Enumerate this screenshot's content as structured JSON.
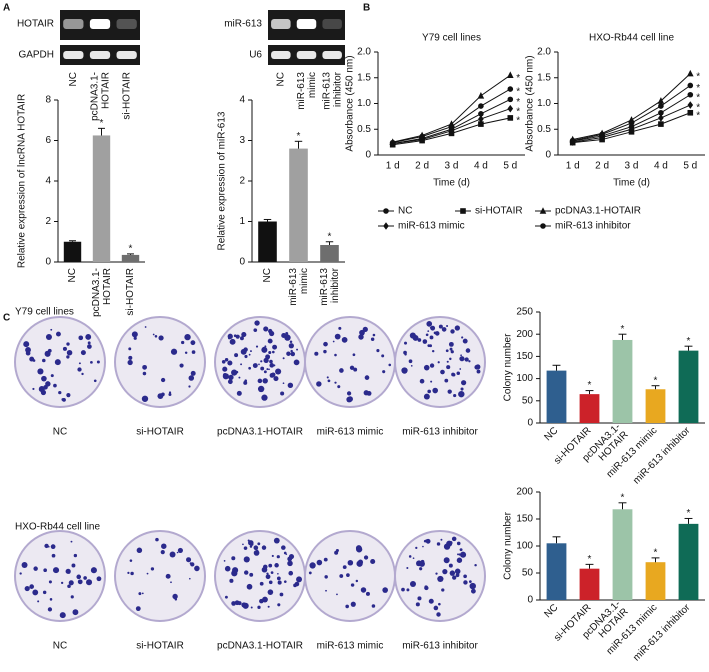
{
  "figure": {
    "panel_labels": [
      "A",
      "B",
      "C"
    ],
    "gels": [
      {
        "target": "HOTAIR",
        "control": "GAPDH",
        "lanes": [
          "NC",
          "pcDNA3.1-\nHOTAIR",
          "si-HOTAIR"
        ]
      },
      {
        "target": "miR-613",
        "control": "U6",
        "lanes": [
          "NC",
          "miR-613\nmimic",
          "miR-613\ninhibitor"
        ]
      }
    ],
    "colony_rows": [
      {
        "title": "Y79 cell lines",
        "labels": [
          "NC",
          "si-HOTAIR",
          "pcDNA3.1-HOTAIR",
          "miR-613 mimic",
          "miR-613 inhibitor"
        ]
      },
      {
        "title": "HXO-Rb44 cell line",
        "labels": [
          "NC",
          "si-HOTAIR",
          "pcDNA3.1-HOTAIR",
          "miR-613 mimic",
          "miR-613 inhibitor"
        ]
      }
    ]
  },
  "chart_data": [
    {
      "type": "bar",
      "ylabel": "Relative expression of lncRNA HOTAIR",
      "categories": [
        "NC",
        "pcDNA3.1-\nHOTAIR",
        "si-HOTAIR"
      ],
      "values": [
        1.0,
        6.25,
        0.35
      ],
      "errors": [
        0.05,
        0.35,
        0.05
      ],
      "annotations": [
        null,
        "*",
        "*"
      ],
      "colors": [
        "#111111",
        "#a0a0a0",
        "#6e6e6e"
      ],
      "ylim": [
        0,
        8
      ],
      "yticks": [
        0,
        2,
        4,
        6,
        8
      ]
    },
    {
      "type": "bar",
      "ylabel": "Relative expression of miR-613",
      "categories": [
        "NC",
        "miR-613\nmimic",
        "miR-613\ninhibitor"
      ],
      "values": [
        1.0,
        2.8,
        0.42
      ],
      "errors": [
        0.05,
        0.18,
        0.08
      ],
      "annotations": [
        null,
        "*",
        "*"
      ],
      "colors": [
        "#111111",
        "#a0a0a0",
        "#6e6e6e"
      ],
      "ylim": [
        0,
        4
      ],
      "yticks": [
        0,
        1,
        2,
        3,
        4
      ]
    },
    {
      "type": "line",
      "title": "Y79 cell lines",
      "xlabel": "Time (d)",
      "ylabel": "Absorbance (450 nm)",
      "categories": [
        "1 d",
        "2 d",
        "3 d",
        "4 d",
        "5 d"
      ],
      "ylim": [
        0,
        2
      ],
      "yticks": [
        0,
        0.5,
        {
          "value": 1,
          "label": "1.0"
        },
        1.5,
        {
          "value": 2,
          "label": "2.0"
        }
      ],
      "series": [
        {
          "name": "NC",
          "color": "#111111",
          "values": [
            0.22,
            0.32,
            0.5,
            0.8,
            1.08
          ],
          "annotation": "*"
        },
        {
          "name": "si-HOTAIR",
          "color": "#111111",
          "values": [
            0.2,
            0.28,
            0.42,
            0.6,
            0.72
          ],
          "annotation": "*"
        },
        {
          "name": "pcDNA3.1-HOTAIR",
          "color": "#111111",
          "values": [
            0.25,
            0.38,
            0.6,
            1.15,
            1.55
          ],
          "annotation": "*"
        },
        {
          "name": "miR-613 mimic",
          "color": "#111111",
          "values": [
            0.22,
            0.3,
            0.47,
            0.7,
            0.9
          ],
          "annotation": "*"
        },
        {
          "name": "miR-613 inhibitor",
          "color": "#111111",
          "values": [
            0.24,
            0.36,
            0.55,
            0.95,
            1.28
          ],
          "annotation": "*"
        }
      ]
    },
    {
      "type": "line",
      "title": "HXO-Rb44 cell line",
      "xlabel": "Time (d)",
      "ylabel": "Absorbance (450 nm)",
      "categories": [
        "1 d",
        "2 d",
        "3 d",
        "4 d",
        "5 d"
      ],
      "ylim": [
        0,
        2
      ],
      "yticks": [
        0,
        0.5,
        {
          "value": 1,
          "label": "1.0"
        },
        1.5,
        {
          "value": 2,
          "label": "2.0"
        }
      ],
      "series": [
        {
          "name": "NC",
          "color": "#111111",
          "values": [
            0.27,
            0.37,
            0.55,
            0.82,
            1.17
          ],
          "annotation": "*"
        },
        {
          "name": "si-HOTAIR",
          "color": "#111111",
          "values": [
            0.24,
            0.3,
            0.45,
            0.6,
            0.82
          ],
          "annotation": "*"
        },
        {
          "name": "pcDNA3.1-HOTAIR",
          "color": "#111111",
          "values": [
            0.3,
            0.42,
            0.68,
            1.05,
            1.58
          ],
          "annotation": "*"
        },
        {
          "name": "miR-613 mimic",
          "color": "#111111",
          "values": [
            0.25,
            0.34,
            0.5,
            0.72,
            0.97
          ],
          "annotation": "*"
        },
        {
          "name": "miR-613 inhibitor",
          "color": "#111111",
          "values": [
            0.28,
            0.4,
            0.62,
            0.95,
            1.35
          ],
          "annotation": "*"
        }
      ]
    },
    {
      "type": "bar",
      "ylabel": "Colony number",
      "categories": [
        "NC",
        "si-HOTAIR",
        "pcDNA3.1-\nHOTAIR",
        "miR-613 mimic",
        "miR-613 inhibitor"
      ],
      "values": [
        118,
        65,
        187,
        76,
        163
      ],
      "errors": [
        12,
        8,
        13,
        8,
        10
      ],
      "annotations": [
        null,
        "*",
        "*",
        "*",
        "*"
      ],
      "colors": [
        "#2f5f8f",
        "#cc2229",
        "#9cc4a8",
        "#e8a820",
        "#0f6b56"
      ],
      "ylim": [
        0,
        250
      ],
      "yticks": [
        0,
        50,
        100,
        150,
        200,
        250
      ]
    },
    {
      "type": "bar",
      "ylabel": "Colony number",
      "categories": [
        "NC",
        "si-HOTAIR",
        "pcDNA3.1-\nHOTAIR",
        "miR-613 mimic",
        "miR-613 inhibitor"
      ],
      "values": [
        105,
        58,
        168,
        70,
        141
      ],
      "errors": [
        12,
        8,
        12,
        8,
        10
      ],
      "annotations": [
        null,
        "*",
        "*",
        "*",
        "*"
      ],
      "colors": [
        "#2f5f8f",
        "#cc2229",
        "#9cc4a8",
        "#e8a820",
        "#0f6b56"
      ],
      "ylim": [
        0,
        200
      ],
      "yticks": [
        0,
        50,
        100,
        150,
        200
      ]
    }
  ]
}
